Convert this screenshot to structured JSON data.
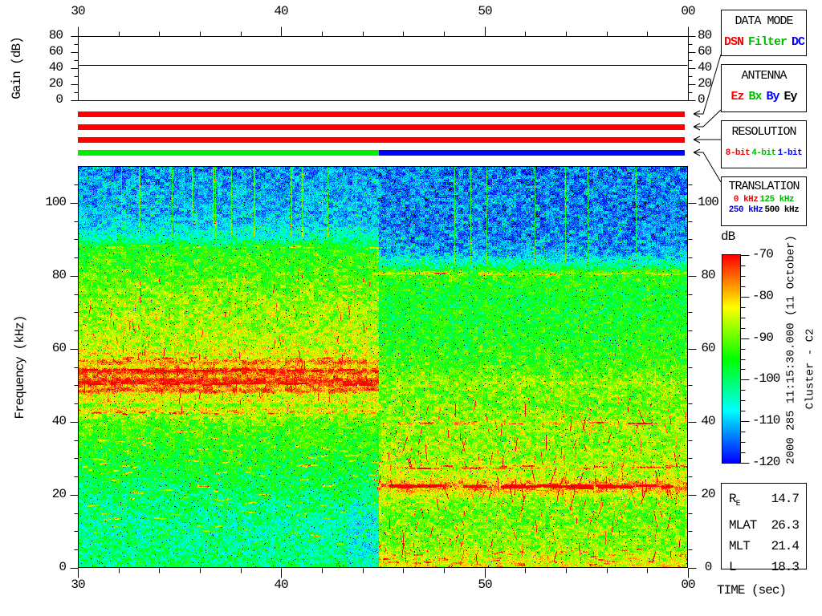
{
  "axes": {
    "time": {
      "label": "TIME (sec)",
      "tick_values": [
        30,
        40,
        50,
        60
      ],
      "tick_labels": [
        "30",
        "40",
        "50",
        "00"
      ],
      "minor_step_sec": 2,
      "range_sec": [
        30,
        60
      ]
    },
    "freq": {
      "label": "Frequency (kHz)",
      "tick_values": [
        0,
        20,
        40,
        60,
        80,
        100
      ],
      "minor_step_khz": 5,
      "range_khz": [
        0,
        110
      ]
    },
    "gain": {
      "label": "Gain (dB)",
      "tick_values": [
        0,
        20,
        40,
        60,
        80
      ],
      "minor_step_db": 10,
      "range_db": [
        0,
        80
      ],
      "gain_line_db": 44
    },
    "colorbar": {
      "label": "dB",
      "tick_values": [
        -70,
        -80,
        -90,
        -100,
        -110,
        -120
      ],
      "minor_step_db": 2.5,
      "range_db": [
        -120,
        -70
      ]
    }
  },
  "legend_boxes": [
    {
      "id": "data-mode",
      "title": "DATA MODE",
      "style": "large",
      "items": [
        {
          "text": "DSN",
          "color": "#ff0000"
        },
        {
          "text": "Filter",
          "color": "#00bb00"
        },
        {
          "text": "DC",
          "color": "#0000ff"
        }
      ]
    },
    {
      "id": "antenna",
      "title": "ANTENNA",
      "style": "large",
      "items": [
        {
          "text": "Ez",
          "color": "#ff0000"
        },
        {
          "text": "Bx",
          "color": "#00bb00"
        },
        {
          "text": "By",
          "color": "#0000ff"
        },
        {
          "text": "Ey",
          "color": "#000000"
        }
      ]
    },
    {
      "id": "resolution",
      "title": "RESOLUTION",
      "style": "small",
      "items": [
        {
          "text": "8-bit",
          "color": "#ff0000"
        },
        {
          "text": "4-bit",
          "color": "#00bb00"
        },
        {
          "text": "1-bit",
          "color": "#0000ff"
        }
      ]
    },
    {
      "id": "translation",
      "title": "TRANSLATION",
      "style": "rows",
      "rows": [
        [
          {
            "text": "0 kHz",
            "color": "#ff0000"
          },
          {
            "text": "125 kHz",
            "color": "#00bb00"
          }
        ],
        [
          {
            "text": "250 kHz",
            "color": "#0000ff"
          },
          {
            "text": "500 kHz",
            "color": "#000000"
          }
        ]
      ]
    }
  ],
  "status_bars": [
    {
      "id": "data-mode-bar",
      "meaning": "DSN",
      "segments": [
        {
          "from_sec": 30,
          "to_sec": 60,
          "color": "#ff0000",
          "value": "DSN"
        }
      ]
    },
    {
      "id": "antenna-bar",
      "meaning": "Ez",
      "segments": [
        {
          "from_sec": 30,
          "to_sec": 60,
          "color": "#ff0000",
          "value": "Ez"
        }
      ]
    },
    {
      "id": "resolution-bar",
      "meaning": "8-bit",
      "segments": [
        {
          "from_sec": 30,
          "to_sec": 60,
          "color": "#ff0000",
          "value": "8-bit"
        }
      ]
    },
    {
      "id": "translation-bar",
      "meaning": "125 kHz then 250 kHz",
      "segments": [
        {
          "from_sec": 30,
          "to_sec": 44.8,
          "color": "#00ee00",
          "value": "125 kHz"
        },
        {
          "from_sec": 44.8,
          "to_sec": 60,
          "color": "#0000ff",
          "value": "250 kHz"
        }
      ]
    }
  ],
  "side_annotations": {
    "datetime": "2000 285 11:15:30.000 (11 October)",
    "spacecraft": "Cluster - C2"
  },
  "ephemeris": {
    "rows": [
      {
        "label": "R",
        "sub": "E",
        "value": "14.7"
      },
      {
        "label": "MLAT",
        "sub": "",
        "value": "26.3"
      },
      {
        "label": "MLT",
        "sub": "",
        "value": "21.4"
      },
      {
        "label": "L",
        "sub": "",
        "value": "18.3"
      }
    ]
  },
  "chart_data": {
    "type": "heatmap",
    "title": "Cluster - C2 wideband spectrogram, 2000 285 11:15:30.000 (11 October)",
    "x": {
      "label": "TIME (sec)",
      "range_sec": [
        30,
        60
      ],
      "tick_labels": [
        "30",
        "40",
        "50",
        "00"
      ],
      "minor_tick_step_sec": 2
    },
    "y": {
      "label": "Frequency (kHz)",
      "range_khz": [
        0,
        110
      ],
      "ticks": [
        0,
        20,
        40,
        60,
        80,
        100
      ],
      "minor_tick_step_khz": 5
    },
    "color": {
      "label": "dB",
      "range_db": [
        -120,
        -70
      ],
      "ticks": [
        -70,
        -80,
        -90,
        -100,
        -110,
        -120
      ],
      "colormap": "rainbow: -120 dB = deep blue, -110 cyan-blue, -100 cyan-green, -90 green, -80 yellow-orange, -70 red"
    },
    "gain_panel": {
      "label": "Gain (dB)",
      "range_db": [
        0,
        80
      ],
      "ticks": [
        0,
        20,
        40,
        60,
        80
      ],
      "gain_line_db": 44
    },
    "mode_change_time_sec": 44.8,
    "features": [
      "Left segment (30 to ~44.8 s, 125 kHz translation): deep blue noise above ~92 kHz with thin vertical green streaks",
      "Left segment: intense red emission band ~48-56 kHz with horizontal striations; secondary dashed red row near ~42-43 kHz",
      "Left segment: yellow/orange diffuse emission ~58-80 kHz; green ~25-40 kHz; cyan-green below 20 kHz with short red dashes ~8-18 kHz",
      "Right segment (~44.8 to 60 s, 250 kHz translation): blue noise above ~84 kHz, narrow green line near ~81 kHz",
      "Right segment: yellow-green background with many red filamentary bursts 5-45 kHz; strong red band ~22-23 kHz; dashed red row ~28 kHz; orange-red near 0-4 kHz",
      "Gain panel: constant receiver gain line at ~44 dB across the interval"
    ]
  }
}
